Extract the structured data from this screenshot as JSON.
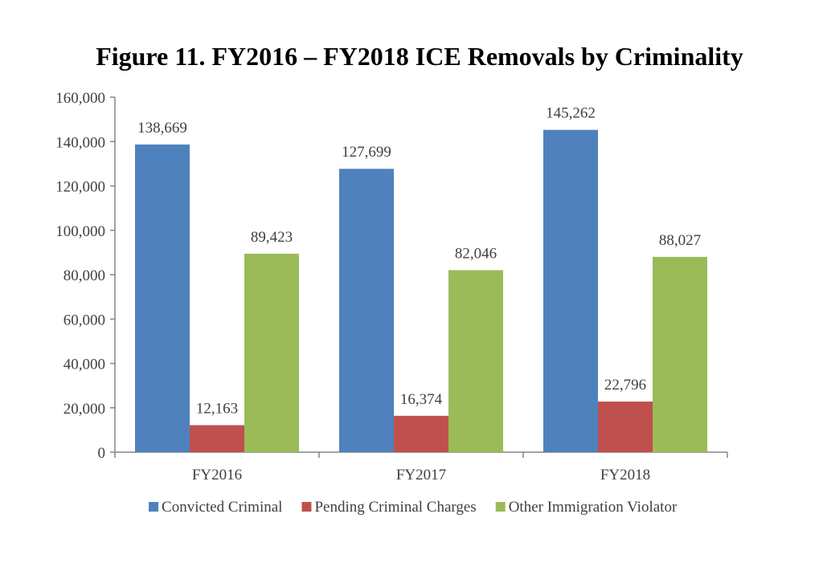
{
  "chart_data": {
    "type": "bar",
    "title": "Figure 11. FY2016 – FY2018 ICE Removals by Criminality",
    "categories": [
      "FY2016",
      "FY2017",
      "FY2018"
    ],
    "series": [
      {
        "name": "Convicted Criminal",
        "color": "#4f81bd",
        "values": [
          138669,
          127699,
          145262
        ],
        "labels": [
          "138,669",
          "127,699",
          "145,262"
        ]
      },
      {
        "name": "Pending Criminal Charges",
        "color": "#c0504d",
        "values": [
          12163,
          16374,
          22796
        ],
        "labels": [
          "12,163",
          "16,374",
          "22,796"
        ]
      },
      {
        "name": "Other Immigration Violator",
        "color": "#9bbb59",
        "values": [
          89423,
          82046,
          88027
        ],
        "labels": [
          "89,423",
          "82,046",
          "88,027"
        ]
      }
    ],
    "ylim": [
      0,
      160000
    ],
    "yticks": [
      0,
      20000,
      40000,
      60000,
      80000,
      100000,
      120000,
      140000,
      160000
    ],
    "ytick_labels": [
      "0",
      "20,000",
      "40,000",
      "60,000",
      "80,000",
      "100,000",
      "120,000",
      "140,000",
      "160,000"
    ],
    "xlabel": "",
    "ylabel": "",
    "grid": false,
    "legend_position": "bottom"
  }
}
